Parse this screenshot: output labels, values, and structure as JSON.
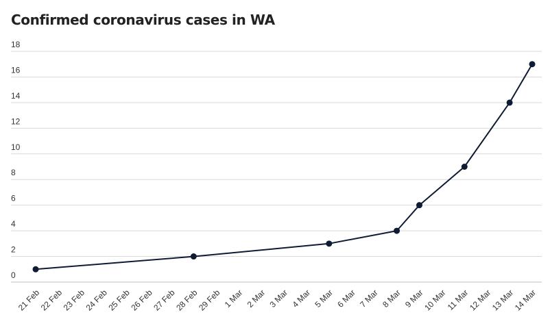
{
  "chart_data": {
    "type": "line",
    "title": "Confirmed coronavirus cases in WA",
    "xlabel": "",
    "ylabel": "",
    "ylim": [
      0,
      18
    ],
    "yticks": [
      0,
      2,
      4,
      6,
      8,
      10,
      12,
      14,
      16,
      18
    ],
    "categories": [
      "21 Feb",
      "22 Feb",
      "23 Feb",
      "24 Feb",
      "25 Feb",
      "26 Feb",
      "27 Feb",
      "28 Feb",
      "29 Feb",
      "1 Mar",
      "2 Mar",
      "3 Mar",
      "4 Mar",
      "5 Mar",
      "6 Mar",
      "7 Mar",
      "8 Mar",
      "9 Mar",
      "10 Mar",
      "11 Mar",
      "12 Mar",
      "13 Mar",
      "14 Mar"
    ],
    "series": [
      {
        "points": [
          {
            "x": "21 Feb",
            "y": 1
          },
          {
            "x": "28 Feb",
            "y": 2
          },
          {
            "x": "5 Mar",
            "y": 3
          },
          {
            "x": "8 Mar",
            "y": 4
          },
          {
            "x": "9 Mar",
            "y": 6
          },
          {
            "x": "11 Mar",
            "y": 9
          },
          {
            "x": "13 Mar",
            "y": 14
          },
          {
            "x": "14 Mar",
            "y": 17
          }
        ]
      }
    ],
    "grid": true,
    "legend": "none",
    "colors": {
      "line": "#0f1b33",
      "grid": "#d9d9d9"
    }
  }
}
